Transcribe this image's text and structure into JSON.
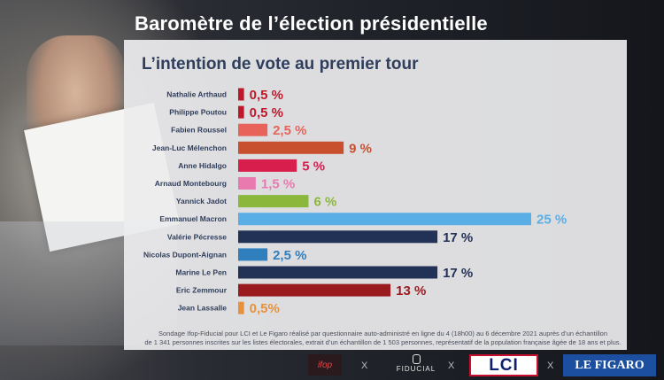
{
  "header": {
    "title": "Baromètre de l’élection présidentielle",
    "subtitle": "L’intention de vote au premier tour"
  },
  "chart_data": {
    "type": "bar",
    "orientation": "horizontal",
    "title": "L’intention de vote au premier tour",
    "xlim": [
      0,
      25
    ],
    "grid": false,
    "categories": [
      "Nathalie Arthaud",
      "Philippe Poutou",
      "Fabien Roussel",
      "Jean-Luc Mélenchon",
      "Anne Hidalgo",
      "Arnaud Montebourg",
      "Yannick Jadot",
      "Emmanuel Macron",
      "Valérie Pécresse",
      "Nicolas Dupont-Aignan",
      "Marine Le Pen",
      "Eric Zemmour",
      "Jean Lassalle"
    ],
    "values": [
      0.5,
      0.5,
      2.5,
      9,
      5,
      1.5,
      6,
      25,
      17,
      2.5,
      17,
      13,
      0.5
    ],
    "data_labels": [
      "0,5 %",
      "0,5 %",
      "2,5 %",
      "9 %",
      "5 %",
      "1,5 %",
      "6 %",
      "25 %",
      "17 %",
      "2,5 %",
      "17 %",
      "13 %",
      "0,5%"
    ],
    "colors": [
      "#c0182b",
      "#c0182b",
      "#e8645a",
      "#c8502f",
      "#d81e4c",
      "#e87ab0",
      "#8bb83a",
      "#5aaee6",
      "#223156",
      "#2f7fbf",
      "#223156",
      "#9a1b1f",
      "#e8913a"
    ]
  },
  "source": {
    "line1": "Sondage Ifop-Fiducial pour LCI et Le Figaro réalisé par questionnaire auto-administré en ligne du 4 (18h00) au 6 décembre 2021 auprès d’un échantillon",
    "line2": "de 1 341 personnes inscrites sur les listes électorales, extrait d’un échantillon de 1 503 personnes, représentatif de la population française âgée de 18 ans et plus."
  },
  "footer": {
    "logo_ifop": "ifop",
    "logo_fiducial": "FIDUCIAL",
    "logo_lci": "LCI",
    "logo_figaro": "LE FIGARO",
    "separator": "X"
  }
}
